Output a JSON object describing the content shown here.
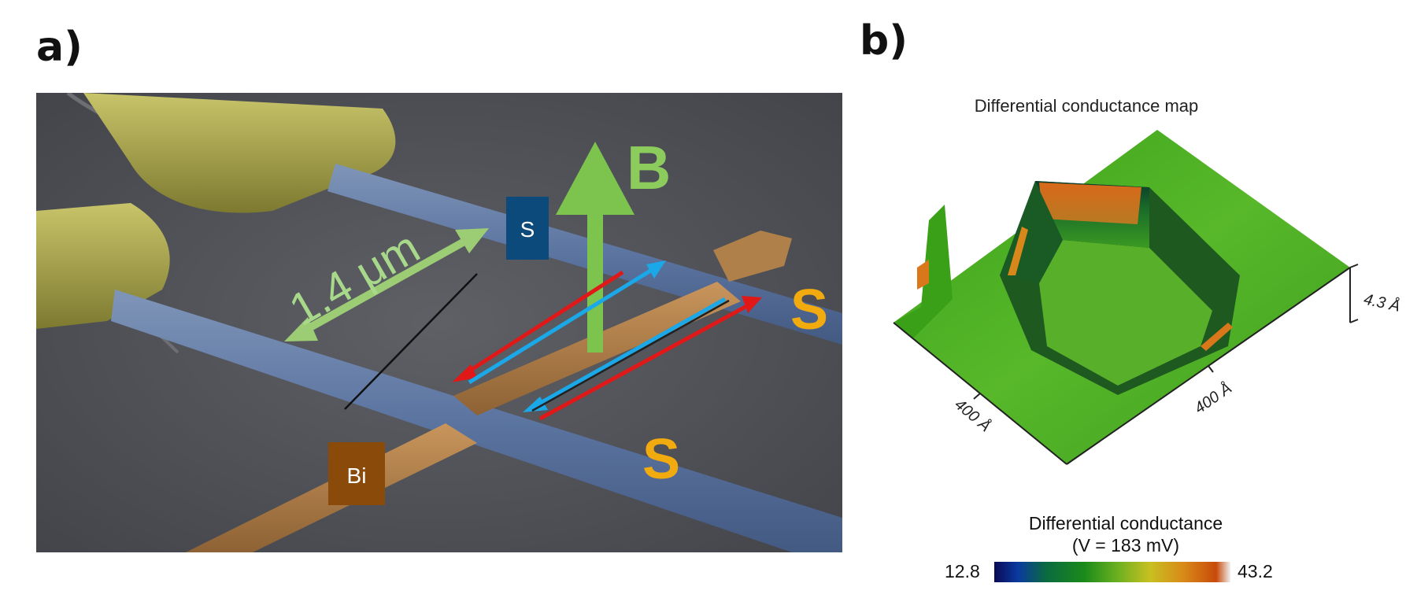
{
  "panel_a": {
    "label": "a)",
    "scale_text": "1.4 μm",
    "s_box_label": "S",
    "bi_box_label": "Bi",
    "b_field_label": "B",
    "s_label_right": "S",
    "s_label_bottom": "S"
  },
  "panel_b": {
    "label": "b)",
    "title": "Differential conductance map",
    "axis_left": "400 Å",
    "axis_right": "400 Å",
    "axis_height": "4.3 Å",
    "colorbar_title_line1": "Differential conductance",
    "colorbar_title_line2": "(V = 183 mV)",
    "colorbar_min": "12.8",
    "colorbar_max": "43.2"
  }
}
